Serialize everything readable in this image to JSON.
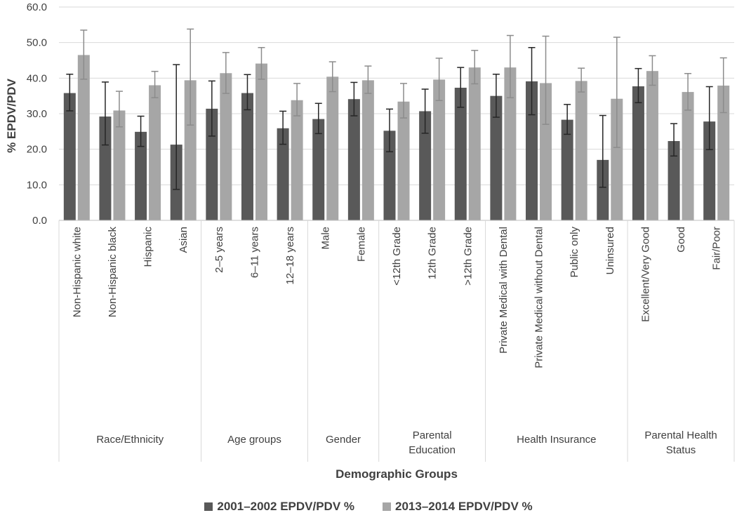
{
  "chart_data": {
    "type": "bar",
    "ylabel": "% EPDV/PDV",
    "xlabel": "Demographic Groups",
    "ylim": [
      0,
      60
    ],
    "yticks": [
      "0.0",
      "10.0",
      "20.0",
      "30.0",
      "40.0",
      "50.0",
      "60.0"
    ],
    "groups": [
      {
        "label": [
          "Race/Ethnicity"
        ],
        "categories": [
          "Non-Hispanic white",
          "Non-Hispanic black",
          "Hispanic",
          "Asian"
        ]
      },
      {
        "label": [
          "Age groups"
        ],
        "categories": [
          "2–5 years",
          "6–11 years",
          "12–18 years"
        ]
      },
      {
        "label": [
          "Gender"
        ],
        "categories": [
          "Male",
          "Female"
        ]
      },
      {
        "label": [
          "Parental",
          "Education"
        ],
        "categories": [
          "<12th Grade",
          "12th Grade",
          ">12th  Grade"
        ]
      },
      {
        "label": [
          "Health Insurance"
        ],
        "categories": [
          "Private Medical with Dental",
          "Private Medical without Dental",
          "Public only",
          "Uninsured"
        ]
      },
      {
        "label": [
          "Parental Health",
          "Status"
        ],
        "categories": [
          "Excellent/Very Good",
          "Good",
          "Fair/Poor"
        ]
      }
    ],
    "series": [
      {
        "name": "2001–2002 EPDV/PDV %",
        "color": "#595959",
        "values": [
          35.8,
          29.2,
          24.9,
          21.3,
          31.4,
          35.8,
          25.9,
          28.5,
          34.1,
          25.2,
          30.7,
          37.3,
          35.0,
          39.1,
          28.3,
          17.0,
          37.7,
          22.3,
          27.8
        ],
        "err_low": [
          30.8,
          21.2,
          20.8,
          8.7,
          23.7,
          31.1,
          21.4,
          24.4,
          29.4,
          19.3,
          24.5,
          31.8,
          29.0,
          29.7,
          24.2,
          9.3,
          33.1,
          18.1,
          19.9
        ],
        "err_high": [
          41.1,
          38.9,
          29.3,
          43.8,
          39.2,
          41.0,
          30.7,
          32.9,
          38.8,
          31.3,
          36.9,
          43.0,
          41.1,
          48.6,
          32.6,
          29.5,
          42.7,
          27.2,
          37.6
        ]
      },
      {
        "name": "2013–2014 EPDV/PDV %",
        "color": "#a6a6a6",
        "values": [
          46.5,
          30.9,
          38.0,
          39.4,
          41.4,
          44.1,
          33.8,
          40.4,
          39.4,
          33.4,
          39.6,
          43.0,
          43.0,
          38.6,
          39.2,
          34.2,
          42.0,
          36.1,
          37.9
        ],
        "err_low": [
          39.7,
          26.3,
          34.5,
          26.8,
          35.7,
          39.7,
          29.4,
          36.2,
          35.7,
          28.8,
          33.7,
          38.4,
          34.5,
          27.0,
          36.1,
          20.5,
          38.0,
          31.0,
          30.3
        ],
        "err_high": [
          53.5,
          36.3,
          41.9,
          53.8,
          47.2,
          48.6,
          38.5,
          44.6,
          43.4,
          38.5,
          45.6,
          47.8,
          52.0,
          51.8,
          42.8,
          51.5,
          46.3,
          41.3,
          45.7
        ]
      }
    ],
    "legend_position": "bottom-center"
  }
}
